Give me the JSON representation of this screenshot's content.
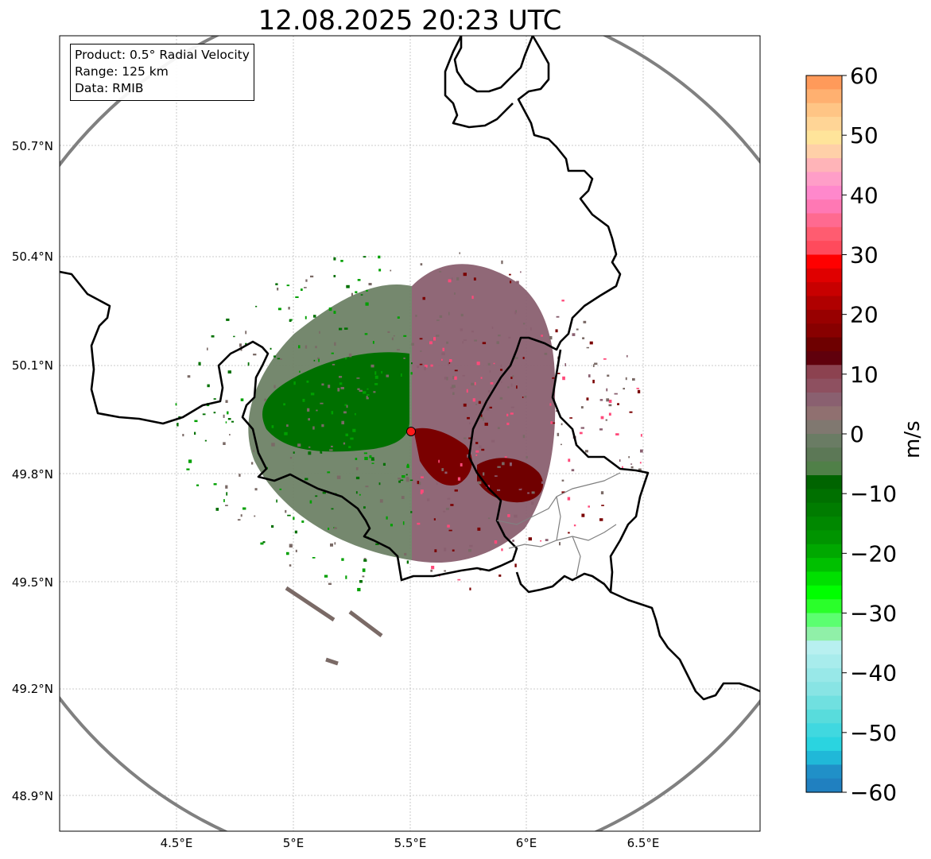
{
  "title": "12.08.2025 20:23 UTC",
  "info": {
    "product": "Product: 0.5° Radial Velocity",
    "range": "Range: 125 km",
    "source": "Data: RMIB"
  },
  "axes": {
    "lat_ticks": [
      "50.7°N",
      "50.4°N",
      "50.1°N",
      "49.8°N",
      "49.5°N",
      "49.2°N",
      "48.9°N"
    ],
    "lon_ticks": [
      "4.5°E",
      "5°E",
      "5.5°E",
      "6°E",
      "6.5°E"
    ]
  },
  "colorbar": {
    "unit": "m/s",
    "ticks": [
      "60",
      "50",
      "40",
      "30",
      "20",
      "10",
      "0",
      "−10",
      "−20",
      "−30",
      "−40",
      "−50",
      "−60"
    ],
    "colors": [
      "#ff9a5a",
      "#ffb070",
      "#ffc585",
      "#ffd596",
      "#ffe49a",
      "#ffd0a8",
      "#ffb4b8",
      "#ff9ec8",
      "#ff88cc",
      "#ff78b4",
      "#ff6a90",
      "#ff5c70",
      "#ff4a5c",
      "#ff0000",
      "#e00000",
      "#c80000",
      "#b00000",
      "#980000",
      "#880000",
      "#6e0000",
      "#60000c",
      "#8c4250",
      "#8e5060",
      "#8a6070",
      "#907070",
      "#807870",
      "#6a7c64",
      "#5c7856",
      "#508048",
      "#006400",
      "#007000",
      "#007c00",
      "#008800",
      "#009400",
      "#00a800",
      "#00c000",
      "#00e000",
      "#00ff00",
      "#2aff2a",
      "#5cff70",
      "#90f0a8",
      "#b8f0f0",
      "#a8ecec",
      "#98e8e8",
      "#88e4e4",
      "#70e0e0",
      "#58dcdc",
      "#40d8e0",
      "#2ad4e0",
      "#20b8d8",
      "#2090c8",
      "#2080c0"
    ],
    "min": -60,
    "max": 60
  },
  "radar_site": {
    "name": "radar-site"
  }
}
